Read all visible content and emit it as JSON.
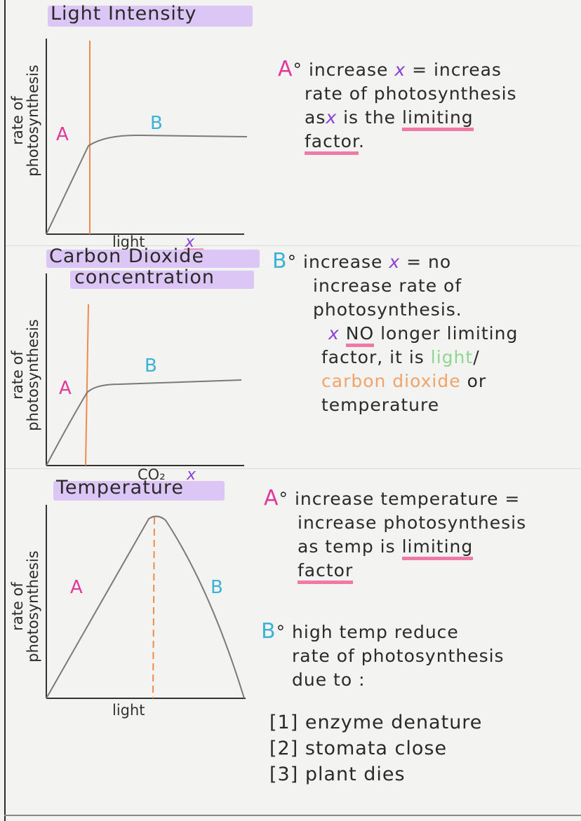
{
  "sections": [
    {
      "title": "Light Intensity",
      "graph": {
        "y_label_line1": "rate of",
        "y_label_line2": "photosynthesis",
        "x_label": "light",
        "x_symbol": "x",
        "region_a": "A",
        "region_b": "B"
      },
      "note_a": {
        "letter": "A",
        "lines": [
          "increase",
          "x",
          "= increas",
          "rate of photosynthesis",
          "as",
          "x",
          "is the",
          "limiting",
          "factor",
          "."
        ]
      }
    },
    {
      "title_line1": "Carbon Dioxide",
      "title_line2": "concentration",
      "graph": {
        "y_label_line1": "rate of",
        "y_label_line2": "photosynthesis",
        "x_label": "CO₂",
        "x_symbol": "x",
        "region_a": "A",
        "region_b": "B"
      },
      "note_b": {
        "letter": "B",
        "line1a": "increase",
        "line1x": "x",
        "line1b": "= no",
        "line2": "increase rate of",
        "line3": "photosynthesis.",
        "line4x": "x",
        "line4no": "NO",
        "line4b": "longer limiting",
        "line5a": "factor, it is",
        "line5light": "light",
        "line5slash": "/",
        "line6co2": "carbon dioxide",
        "line6or": "or",
        "line7": "temperature"
      }
    },
    {
      "title": "Temperature",
      "graph": {
        "y_label_line1": "rate of",
        "y_label_line2": "photosynthesis",
        "x_label": "light",
        "region_a": "A",
        "region_b": "B"
      },
      "note_a": {
        "letter": "A",
        "line1": "increase temperature =",
        "line2": "increase photosynthesis",
        "line3a": "as temp is",
        "line3b": "limiting",
        "line4": "factor"
      },
      "note_b": {
        "letter": "B",
        "line1": "high temp reduce",
        "line2": "rate of photosynthesis",
        "line3": "due to :",
        "reasons": [
          "[1] enzyme denature",
          "[2] stomata close",
          "[3] plant dies"
        ]
      }
    }
  ],
  "colors": {
    "highlight": "#dcc6f5",
    "pink": "#e0389b",
    "blue": "#3cb3d6",
    "orange_line": "#f08a4b",
    "curve": "#7a7a7a",
    "purple_x": "#8a3fd6",
    "underline": "#ef7aa5"
  }
}
